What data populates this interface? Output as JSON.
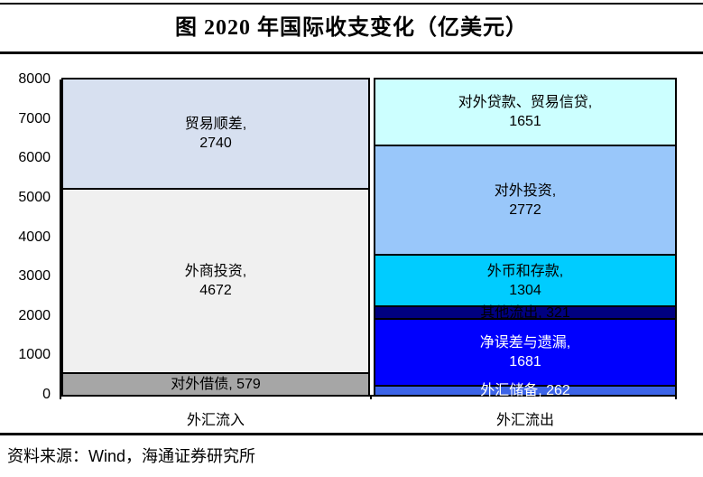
{
  "title": "图  2020 年国际收支变化（亿美元）",
  "source": "资料来源：Wind，海通证券研究所",
  "chart_data": {
    "type": "bar",
    "stacked": true,
    "title": "图 2020 年国际收支变化（亿美元）",
    "unit": "亿美元",
    "ylim": [
      0,
      8000
    ],
    "yticks": [
      0,
      1000,
      2000,
      3000,
      4000,
      5000,
      6000,
      7000,
      8000
    ],
    "grid": false,
    "legend": "none (labels inside segments)",
    "categories": [
      "外汇流入",
      "外汇流出"
    ],
    "bars": [
      {
        "category": "外汇流入",
        "segments_bottom_up": [
          {
            "label": "对外借债",
            "value": 579,
            "color": "#a6a6a6",
            "text_color": "#000000"
          },
          {
            "label": "外商投资",
            "value": 4672,
            "color": "#f0f0f0",
            "text_color": "#000000"
          },
          {
            "label": "贸易顺差",
            "value": 2740,
            "color": "#d7e0f0",
            "text_color": "#000000"
          }
        ]
      },
      {
        "category": "外汇流出",
        "segments_bottom_up": [
          {
            "label": "外汇储备",
            "value": 262,
            "color": "#3c64e8",
            "text_color": "#ffffff"
          },
          {
            "label": "净误差与遗漏",
            "value": 1681,
            "color": "#0000fe",
            "text_color": "#ffffff"
          },
          {
            "label": "其他流出",
            "value": 321,
            "color": "#000080",
            "text_color": "#000000"
          },
          {
            "label": "外币和存款",
            "value": 1304,
            "color": "#00ccff",
            "text_color": "#000000"
          },
          {
            "label": "对外投资",
            "value": 2772,
            "color": "#99c7fa",
            "text_color": "#000000"
          },
          {
            "label": "对外贷款、贸易信贷",
            "value": 1651,
            "color": "#ccffff",
            "text_color": "#000000"
          }
        ]
      }
    ]
  }
}
